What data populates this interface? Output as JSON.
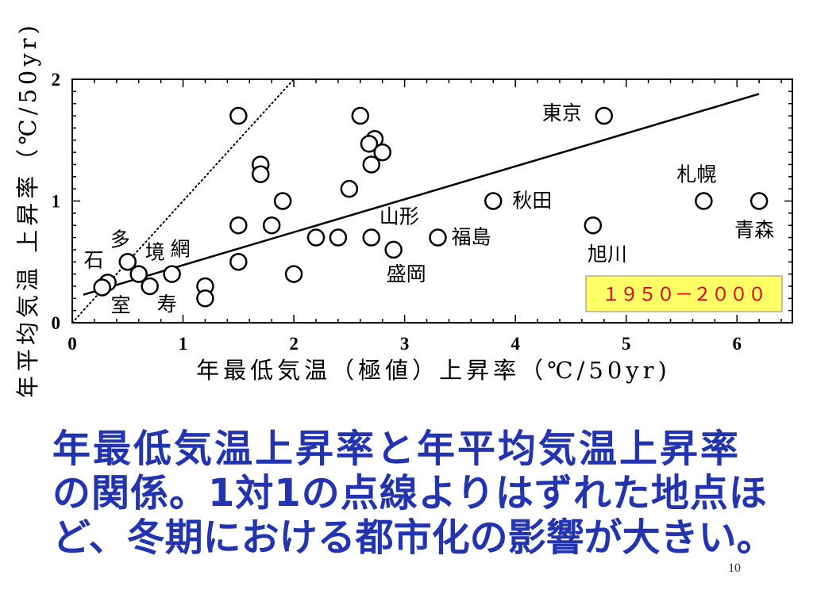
{
  "slide": {
    "caption_lines": [
      "年最低気温上昇率と年平均気温上昇率",
      "の関係。1対1の点線よりはずれた地点ほ",
      "ど、冬期における都市化の影響が大きい。"
    ],
    "page_number": "10",
    "caption_color": "#2334b0"
  },
  "chart_data": {
    "type": "scatter",
    "xlabel": "年最低気温（極値）上昇率（℃/50yr)",
    "ylabel": "年平均気温 上昇率（℃/50yr)",
    "xlim": [
      0,
      6.5
    ],
    "ylim": [
      0,
      2
    ],
    "x_ticks": [
      0,
      1,
      2,
      3,
      4,
      5,
      6
    ],
    "y_ticks": [
      0,
      1,
      2
    ],
    "grid": false,
    "period_box": {
      "text": "１９５０－２０００",
      "background_color": "#ffff66",
      "text_color": "#e3000f"
    },
    "reference_line": {
      "style": "dotted",
      "slope": 1,
      "intercept": 0
    },
    "trend_line": {
      "style": "solid",
      "from": [
        0.1,
        0.23
      ],
      "to": [
        6.2,
        1.88
      ]
    },
    "points": [
      {
        "x": 1.5,
        "y": 1.7
      },
      {
        "x": 2.6,
        "y": 1.7
      },
      {
        "x": 2.73,
        "y": 1.51
      },
      {
        "x": 2.68,
        "y": 1.47
      },
      {
        "x": 2.8,
        "y": 1.4
      },
      {
        "x": 2.7,
        "y": 1.3
      },
      {
        "x": 1.7,
        "y": 1.3
      },
      {
        "x": 1.7,
        "y": 1.22
      },
      {
        "x": 1.9,
        "y": 1.0
      },
      {
        "x": 2.5,
        "y": 1.1
      },
      {
        "x": 1.5,
        "y": 0.8
      },
      {
        "x": 1.8,
        "y": 0.8
      },
      {
        "x": 2.2,
        "y": 0.7
      },
      {
        "x": 2.4,
        "y": 0.7
      },
      {
        "x": 2.7,
        "y": 0.7,
        "label": "山形"
      },
      {
        "x": 2.9,
        "y": 0.6,
        "label": "盛岡"
      },
      {
        "x": 3.3,
        "y": 0.7,
        "label": "福島"
      },
      {
        "x": 1.5,
        "y": 0.5
      },
      {
        "x": 2.0,
        "y": 0.4
      },
      {
        "x": 1.2,
        "y": 0.3
      },
      {
        "x": 1.2,
        "y": 0.2
      },
      {
        "x": 3.8,
        "y": 1.0,
        "label": "秋田"
      },
      {
        "x": 4.8,
        "y": 1.7,
        "label": "東京"
      },
      {
        "x": 4.7,
        "y": 0.8,
        "label": "旭川"
      },
      {
        "x": 5.7,
        "y": 1.0,
        "label": "札幌"
      },
      {
        "x": 6.2,
        "y": 1.0,
        "label": "青森"
      },
      {
        "x": 0.5,
        "y": 0.5,
        "label": "多"
      },
      {
        "x": 0.6,
        "y": 0.4,
        "label": "境"
      },
      {
        "x": 0.9,
        "y": 0.4,
        "label": "網"
      },
      {
        "x": 0.7,
        "y": 0.3,
        "label": "寿"
      },
      {
        "x": 0.32,
        "y": 0.33,
        "label": "室"
      },
      {
        "x": 0.27,
        "y": 0.29,
        "label": "石"
      }
    ]
  }
}
